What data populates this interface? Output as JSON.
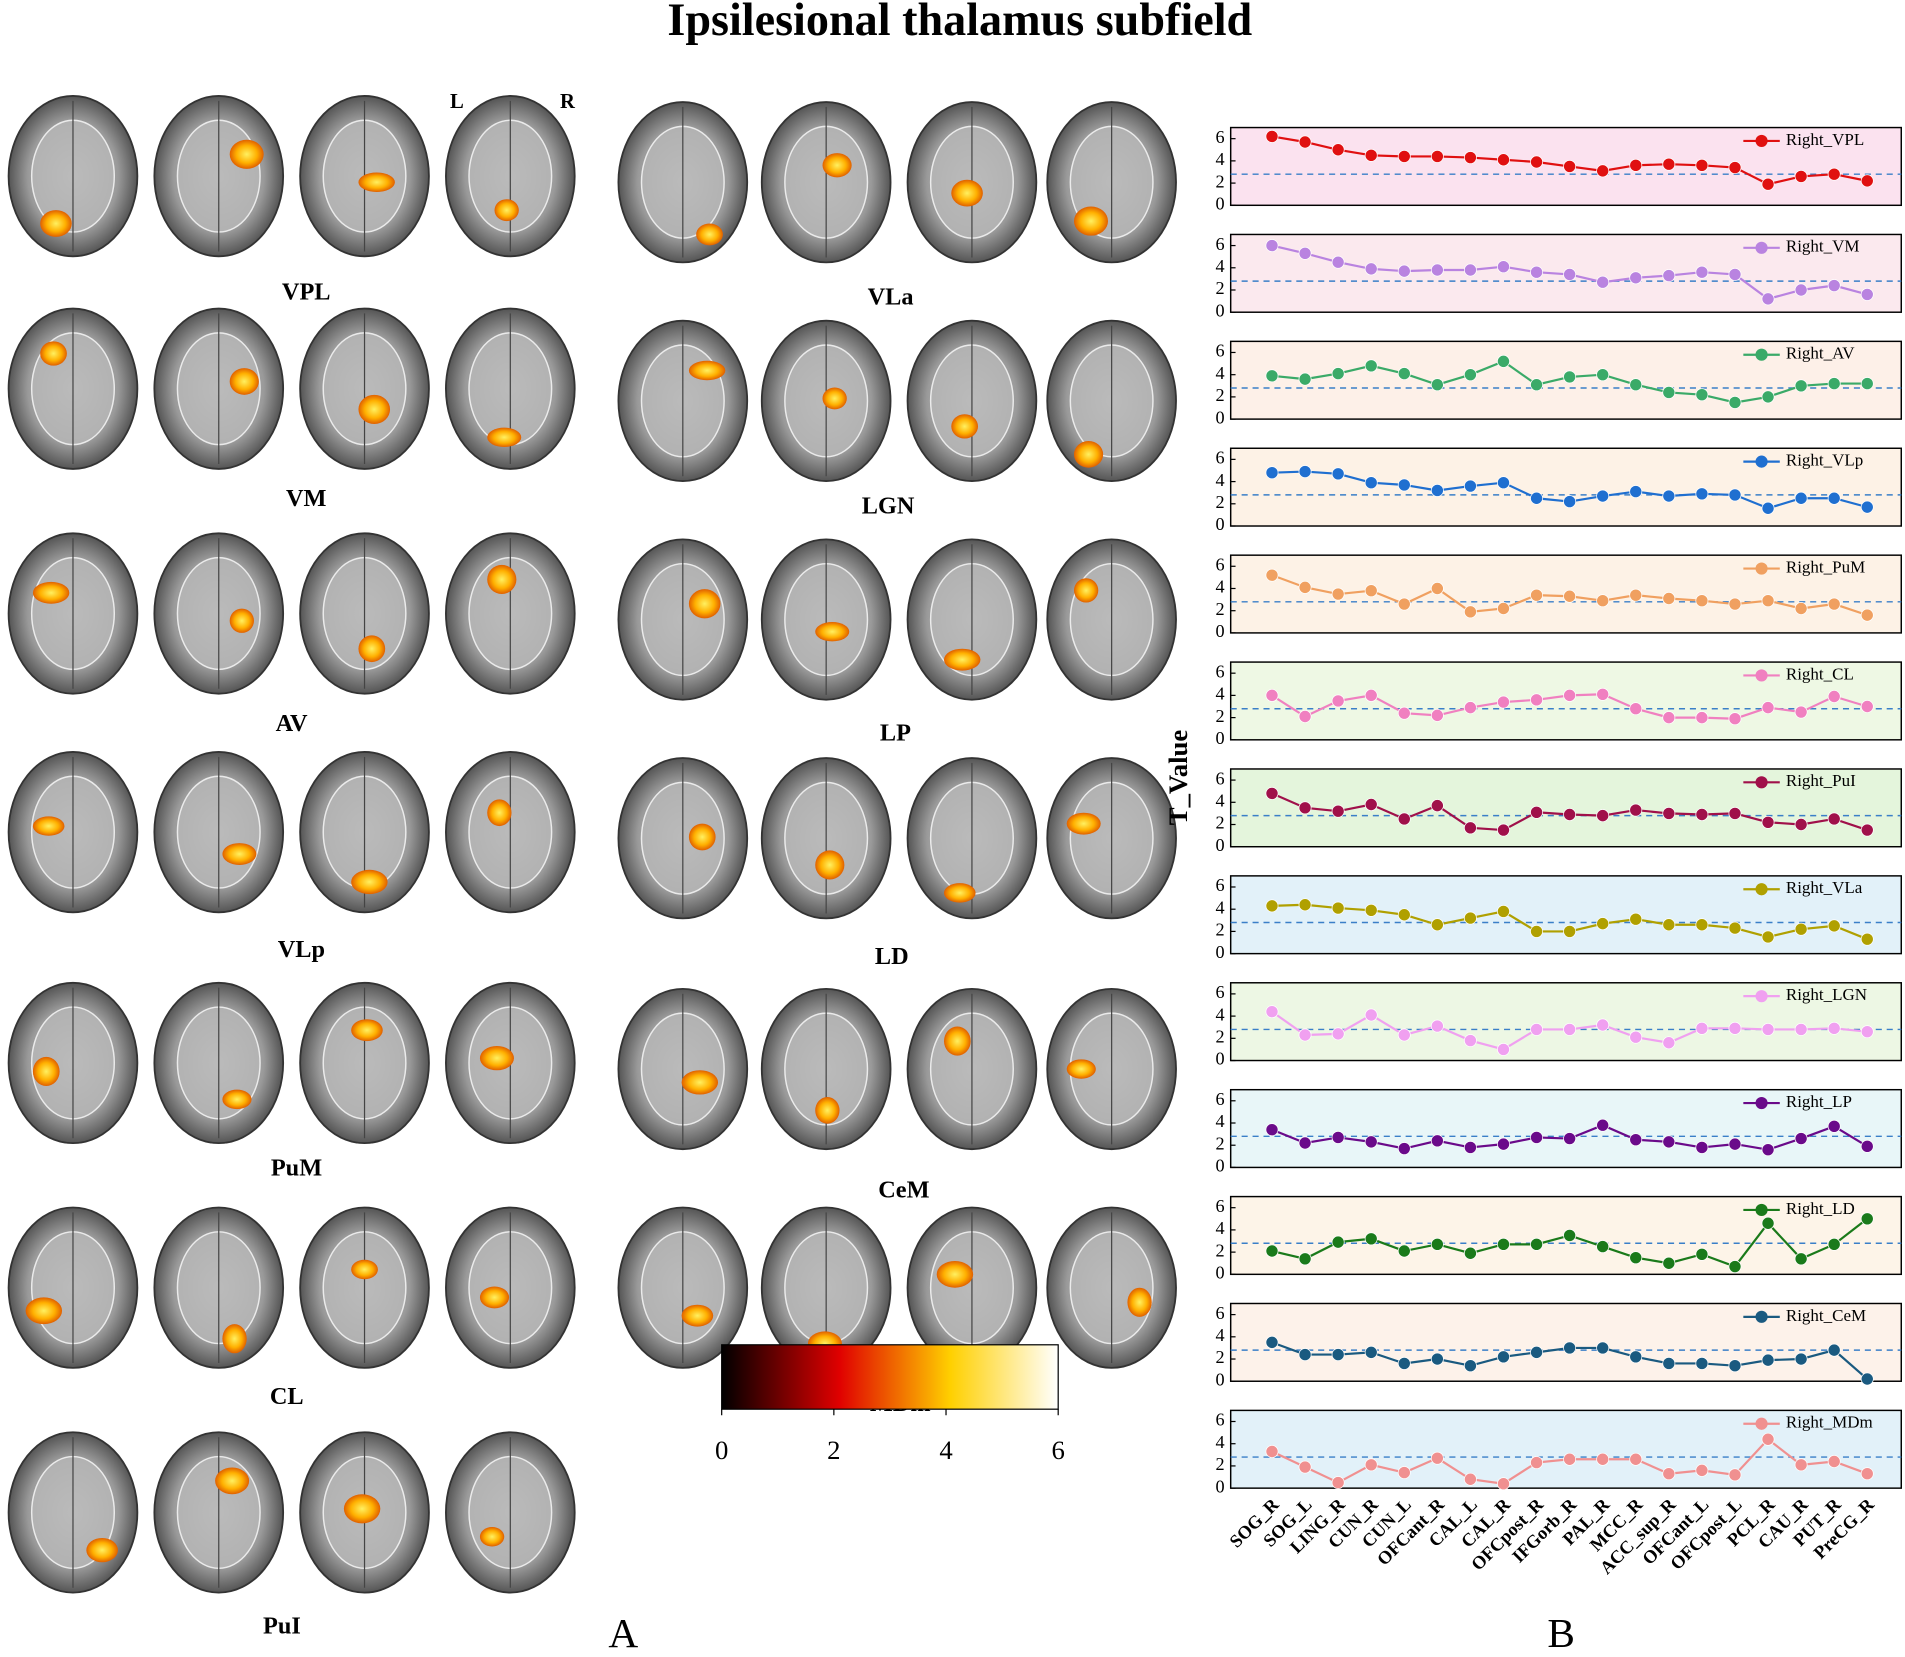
{
  "title": "Ipsilesional thalamus subfield",
  "panel_labels": [
    "A",
    "B"
  ],
  "panel_a": {
    "orientation": [
      "L",
      "R"
    ],
    "labels": [
      "VPL",
      "VM",
      "AV",
      "VLp",
      "PuM",
      "CL",
      "PuI",
      "VLa",
      "LGN",
      "LP",
      "LD",
      "CeM",
      "MDm"
    ],
    "colorbar": {
      "lim": [
        0,
        6
      ],
      "ticks": [
        0,
        2,
        4,
        6
      ]
    }
  },
  "chart_data": {
    "type": "line",
    "y_label": "T_Value",
    "categories": [
      "SOG_R",
      "SOG_L",
      "LING_R",
      "CUN_R",
      "CUN_L",
      "OFCant_R",
      "CAL_L",
      "CAL_R",
      "OFCpost_R",
      "IFGorb_R",
      "PAL_R",
      "MCC_R",
      "ACC_sup_R",
      "OFCant_L",
      "OFCpost_L",
      "PCL_R",
      "CAU_R",
      "PUT_R",
      "PreCG_R"
    ],
    "ylim": [
      0,
      7
    ],
    "yticks": [
      0,
      2,
      4,
      6
    ],
    "threshold": 2.8,
    "series": [
      {
        "name": "Right_VPL",
        "color": "#e01010",
        "background": "#fbe2ef",
        "values": [
          6.2,
          5.7,
          5.0,
          4.5,
          4.4,
          4.4,
          4.3,
          4.1,
          3.9,
          3.5,
          3.1,
          3.6,
          3.7,
          3.6,
          3.4,
          1.9,
          2.6,
          2.8,
          2.2
        ]
      },
      {
        "name": "Right_VM",
        "color": "#b983e0",
        "background": "#fbe9ee",
        "values": [
          6.0,
          5.3,
          4.5,
          3.9,
          3.7,
          3.8,
          3.8,
          4.1,
          3.6,
          3.4,
          2.7,
          3.1,
          3.3,
          3.6,
          3.4,
          1.2,
          2.0,
          2.4,
          1.6
        ]
      },
      {
        "name": "Right_AV",
        "color": "#3aaa68",
        "background": "#fdf0e8",
        "values": [
          3.9,
          3.6,
          4.1,
          4.8,
          4.1,
          3.1,
          4.0,
          5.2,
          3.1,
          3.8,
          4.0,
          3.1,
          2.4,
          2.2,
          1.5,
          2.0,
          3.0,
          3.2,
          3.2
        ]
      },
      {
        "name": "Right_VLp",
        "color": "#1f6fd0",
        "background": "#fdf2e6",
        "values": [
          4.8,
          4.9,
          4.7,
          3.9,
          3.7,
          3.2,
          3.6,
          3.9,
          2.5,
          2.2,
          2.7,
          3.1,
          2.7,
          2.9,
          2.8,
          1.6,
          2.5,
          2.5,
          1.7
        ]
      },
      {
        "name": "Right_PuM",
        "color": "#f0a060",
        "background": "#fdf2e6",
        "values": [
          5.2,
          4.1,
          3.5,
          3.8,
          2.6,
          4.0,
          1.9,
          2.2,
          3.4,
          3.3,
          2.9,
          3.4,
          3.1,
          2.9,
          2.6,
          2.9,
          2.2,
          2.6,
          1.6
        ]
      },
      {
        "name": "Right_CL",
        "color": "#f080c0",
        "background": "#eef8e4",
        "values": [
          4.0,
          2.1,
          3.5,
          4.0,
          2.4,
          2.2,
          2.9,
          3.4,
          3.6,
          4.0,
          4.1,
          2.8,
          2.0,
          2.0,
          1.9,
          2.9,
          2.5,
          3.9,
          3.0
        ]
      },
      {
        "name": "Right_PuI",
        "color": "#a0104a",
        "background": "#e4f5dc",
        "values": [
          4.8,
          3.5,
          3.2,
          3.8,
          2.5,
          3.7,
          1.7,
          1.5,
          3.1,
          2.9,
          2.8,
          3.3,
          3.0,
          2.9,
          3.0,
          2.2,
          2.0,
          2.5,
          1.5
        ]
      },
      {
        "name": "Right_VLa",
        "color": "#b0a000",
        "background": "#e2f1f9",
        "values": [
          4.3,
          4.4,
          4.1,
          3.9,
          3.5,
          2.6,
          3.2,
          3.8,
          2.0,
          2.0,
          2.7,
          3.1,
          2.6,
          2.6,
          2.3,
          1.5,
          2.2,
          2.5,
          1.3
        ]
      },
      {
        "name": "Right_LGN",
        "color": "#f0a0f0",
        "background": "#edf7e4",
        "values": [
          4.4,
          2.3,
          2.4,
          4.1,
          2.3,
          3.1,
          1.8,
          1.0,
          2.8,
          2.8,
          3.2,
          2.1,
          1.6,
          2.9,
          2.9,
          2.8,
          2.8,
          2.9,
          2.6
        ]
      },
      {
        "name": "Right_LP",
        "color": "#6a0a8a",
        "background": "#e8f6f8",
        "values": [
          3.4,
          2.2,
          2.7,
          2.3,
          1.7,
          2.4,
          1.8,
          2.1,
          2.7,
          2.6,
          3.8,
          2.5,
          2.3,
          1.8,
          2.1,
          1.6,
          2.6,
          3.7,
          1.9
        ]
      },
      {
        "name": "Right_LD",
        "color": "#1a7a1a",
        "background": "#fdf4e8",
        "values": [
          2.1,
          1.4,
          2.9,
          3.2,
          2.1,
          2.7,
          1.9,
          2.7,
          2.7,
          3.5,
          2.5,
          1.5,
          1.0,
          1.8,
          0.7,
          4.6,
          1.4,
          2.7,
          5.0
        ]
      },
      {
        "name": "Right_CeM",
        "color": "#1a5a80",
        "background": "#fdf2ea",
        "values": [
          3.5,
          2.4,
          2.4,
          2.6,
          1.6,
          2.0,
          1.4,
          2.2,
          2.6,
          3.0,
          3.0,
          2.2,
          1.6,
          1.6,
          1.4,
          1.9,
          2.0,
          2.8,
          0.2
        ]
      },
      {
        "name": "Right_MDm",
        "color": "#f09090",
        "background": "#e2f1f9",
        "values": [
          3.3,
          1.9,
          0.5,
          2.1,
          1.4,
          2.7,
          0.8,
          0.4,
          2.3,
          2.6,
          2.6,
          2.6,
          1.3,
          1.6,
          1.2,
          4.4,
          2.1,
          2.4,
          1.3
        ]
      }
    ]
  }
}
